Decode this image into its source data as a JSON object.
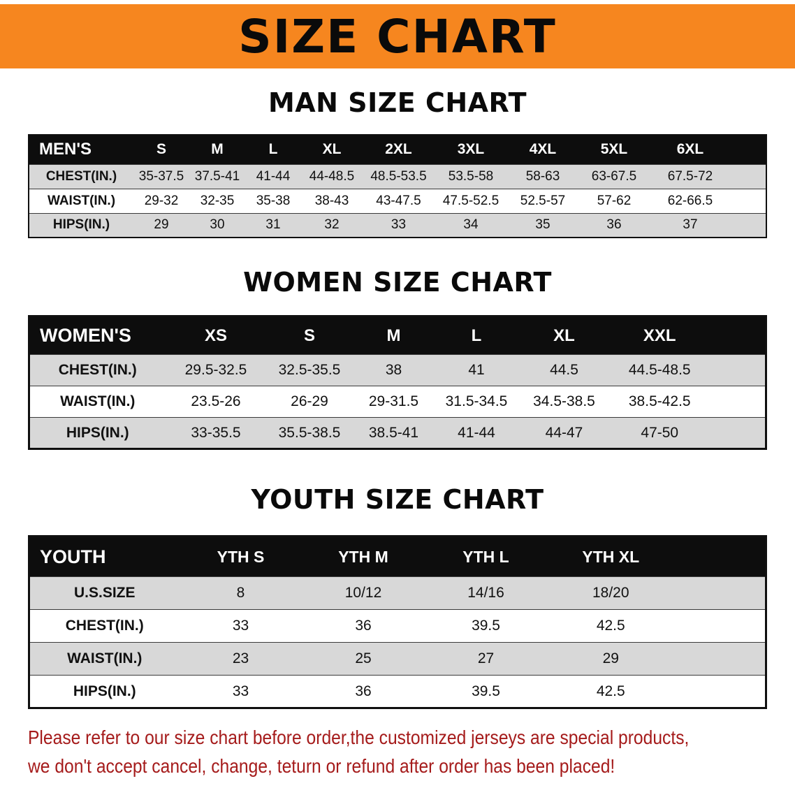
{
  "banner": {
    "title": "SIZE CHART"
  },
  "sections": [
    {
      "heading": "MAN SIZE CHART",
      "table": {
        "header": [
          "MEN'S",
          "S",
          "M",
          "L",
          "XL",
          "2XL",
          "3XL",
          "4XL",
          "5XL",
          "6XL"
        ],
        "rows": [
          [
            "CHEST(IN.)",
            "35-37.5",
            "37.5-41",
            "41-44",
            "44-48.5",
            "48.5-53.5",
            "53.5-58",
            "58-63",
            "63-67.5",
            "67.5-72"
          ],
          [
            "WAIST(IN.)",
            "29-32",
            "32-35",
            "35-38",
            "38-43",
            "43-47.5",
            "47.5-52.5",
            "52.5-57",
            "57-62",
            "62-66.5"
          ],
          [
            "HIPS(IN.)",
            "29",
            "30",
            "31",
            "32",
            "33",
            "34",
            "35",
            "36",
            "37"
          ]
        ]
      }
    },
    {
      "heading": "WOMEN SIZE CHART",
      "table": {
        "header": [
          "WOMEN'S",
          "XS",
          "S",
          "M",
          "L",
          "XL",
          "XXL"
        ],
        "rows": [
          [
            "CHEST(IN.)",
            "29.5-32.5",
            "32.5-35.5",
            "38",
            "41",
            "44.5",
            "44.5-48.5"
          ],
          [
            "WAIST(IN.)",
            "23.5-26",
            "26-29",
            "29-31.5",
            "31.5-34.5",
            "34.5-38.5",
            "38.5-42.5"
          ],
          [
            "HIPS(IN.)",
            "33-35.5",
            "35.5-38.5",
            "38.5-41",
            "41-44",
            "44-47",
            "47-50"
          ]
        ]
      }
    },
    {
      "heading": "YOUTH SIZE CHART",
      "table": {
        "header": [
          "YOUTH",
          "YTH S",
          "YTH M",
          "YTH L",
          "YTH XL"
        ],
        "rows": [
          [
            "U.S.SIZE",
            "8",
            "10/12",
            "14/16",
            "18/20"
          ],
          [
            "CHEST(IN.)",
            "33",
            "36",
            "39.5",
            "42.5"
          ],
          [
            "WAIST(IN.)",
            "23",
            "25",
            "27",
            "29"
          ],
          [
            "HIPS(IN.)",
            "33",
            "36",
            "39.5",
            "42.5"
          ]
        ]
      }
    }
  ],
  "disclaimer": {
    "line1": "Please refer to our size chart before order,the customized jerseys are special products,",
    "line2": "we don't accept cancel, change, teturn or refund after order has been placed!"
  },
  "colors": {
    "banner_bg": "#f6861f",
    "header_bg": "#0d0d0d",
    "row_alt_bg": "#d8d8d8",
    "row_bg": "#ffffff",
    "disclaimer_text": "#a51b1b"
  }
}
